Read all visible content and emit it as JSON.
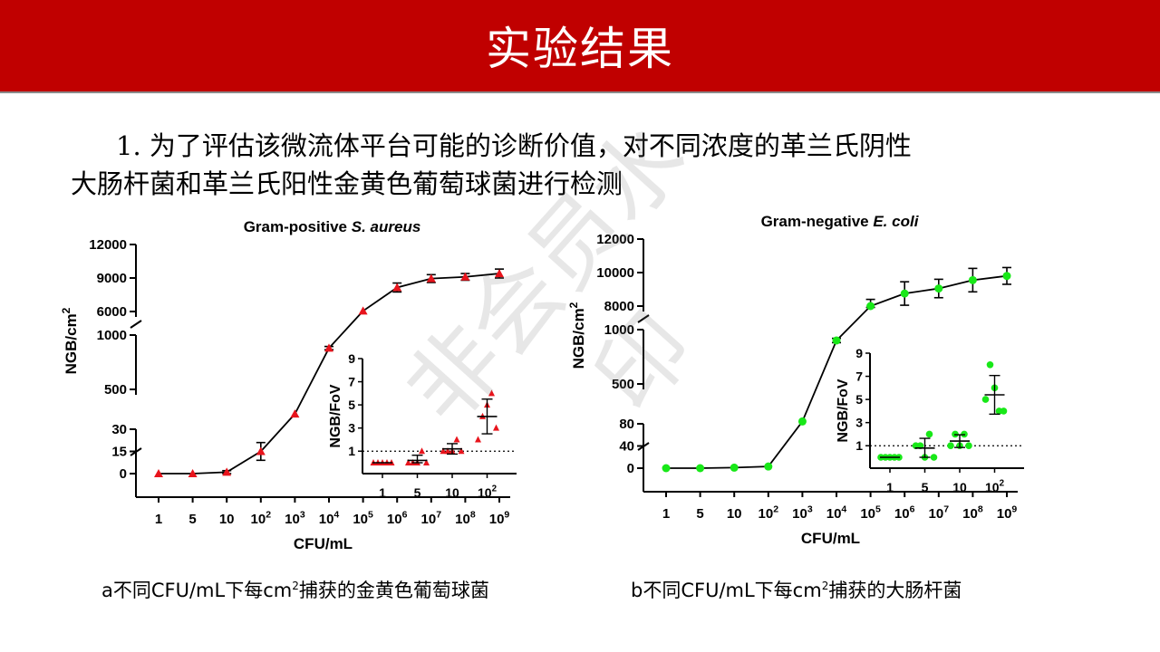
{
  "header": {
    "title": "实验结果"
  },
  "intro": {
    "line1": "1. 为了评估该微流体平台可能的诊断价值，对不同浓度的革兰氏阴性",
    "line2": "大肠杆菌和革兰氏阳性金黄色葡萄球菌进行检测"
  },
  "captions": {
    "a_pre": "a不同CFU/mL下每cm",
    "a_sup": "2",
    "a_post": "捕获的金黄色葡萄球菌",
    "b_pre": "b不同CFU/mL下每cm",
    "b_sup": "2",
    "b_post": "捕获的大肠杆菌"
  },
  "watermark": "非会员水印",
  "chart_data": [
    {
      "type": "line",
      "title": "Gram-positive S. aureus",
      "title_plain": "Gram-positive ",
      "title_italic": "S. aureus",
      "xlabel": "CFU/mL",
      "ylabel_base": "NGB/cm",
      "ylabel_sup": "2",
      "x_ticks": [
        {
          "base": "1",
          "exp": ""
        },
        {
          "base": "5",
          "exp": ""
        },
        {
          "base": "10",
          "exp": ""
        },
        {
          "base": "10",
          "exp": "2"
        },
        {
          "base": "10",
          "exp": "3"
        },
        {
          "base": "10",
          "exp": "4"
        },
        {
          "base": "10",
          "exp": "5"
        },
        {
          "base": "10",
          "exp": "6"
        },
        {
          "base": "10",
          "exp": "7"
        },
        {
          "base": "10",
          "exp": "8"
        },
        {
          "base": "10",
          "exp": "9"
        }
      ],
      "y_segments": [
        {
          "ticks": [
            0,
            15,
            30
          ]
        },
        {
          "ticks": [
            500,
            1000
          ]
        },
        {
          "ticks": [
            6000,
            9000,
            12000
          ]
        }
      ],
      "y_labels": [
        "0",
        "15",
        "30",
        "500",
        "1000",
        "6000",
        "9000",
        "12000"
      ],
      "marker": "triangle",
      "color": "#e8141c",
      "values": [
        0,
        0,
        1,
        15,
        210,
        880,
        6050,
        8150,
        8950,
        9100,
        9400
      ],
      "errors": [
        0,
        0,
        1,
        6,
        10,
        15,
        150,
        400,
        350,
        300,
        400
      ],
      "inset": {
        "ylabel": "NGB/FoV",
        "y_ticks": [
          1,
          3,
          5,
          7,
          9
        ],
        "y_labels": [
          "1",
          "3",
          "5",
          "7",
          "9"
        ],
        "x_ticks": [
          {
            "base": "1",
            "exp": ""
          },
          {
            "base": "5",
            "exp": ""
          },
          {
            "base": "10",
            "exp": ""
          },
          {
            "base": "10",
            "exp": "2"
          }
        ],
        "threshold": 1,
        "groups": [
          {
            "points": [
              0,
              0,
              0,
              0,
              0
            ],
            "mean": 0,
            "sd": 0
          },
          {
            "points": [
              0,
              0,
              0,
              1,
              0
            ],
            "mean": 0.2,
            "sd": 0.45
          },
          {
            "points": [
              1,
              1,
              1,
              2,
              1
            ],
            "mean": 1.2,
            "sd": 0.45
          },
          {
            "points": [
              2,
              4,
              5,
              6,
              3
            ],
            "mean": 4,
            "sd": 1.5
          }
        ]
      }
    },
    {
      "type": "line",
      "title": "Gram-negative E. coli",
      "title_plain": "Gram-negative ",
      "title_italic": "E. coli",
      "xlabel": "CFU/mL",
      "ylabel_base": "NGB/cm",
      "ylabel_sup": "2",
      "x_ticks": [
        {
          "base": "1",
          "exp": ""
        },
        {
          "base": "5",
          "exp": ""
        },
        {
          "base": "10",
          "exp": ""
        },
        {
          "base": "10",
          "exp": "2"
        },
        {
          "base": "10",
          "exp": "3"
        },
        {
          "base": "10",
          "exp": "4"
        },
        {
          "base": "10",
          "exp": "5"
        },
        {
          "base": "10",
          "exp": "6"
        },
        {
          "base": "10",
          "exp": "7"
        },
        {
          "base": "10",
          "exp": "8"
        },
        {
          "base": "10",
          "exp": "9"
        }
      ],
      "y_segments": [
        {
          "ticks": [
            0,
            40,
            80
          ]
        },
        {
          "ticks": [
            500,
            1000
          ]
        },
        {
          "ticks": [
            8000,
            10000,
            12000
          ]
        }
      ],
      "y_labels": [
        "0",
        "40",
        "80",
        "500",
        "1000",
        "8000",
        "10000",
        "12000"
      ],
      "marker": "circle",
      "color": "#18e818",
      "values": [
        0,
        0,
        1,
        3,
        105,
        900,
        8000,
        8750,
        9050,
        9550,
        9800
      ],
      "errors": [
        0,
        0,
        1,
        2,
        4,
        20,
        400,
        700,
        550,
        700,
        500
      ],
      "inset": {
        "ylabel": "NGB/FoV",
        "y_ticks": [
          1,
          3,
          5,
          7,
          9
        ],
        "y_labels": [
          "1",
          "3",
          "5",
          "7",
          "9"
        ],
        "x_ticks": [
          {
            "base": "1",
            "exp": ""
          },
          {
            "base": "5",
            "exp": ""
          },
          {
            "base": "10",
            "exp": ""
          },
          {
            "base": "10",
            "exp": "2"
          }
        ],
        "threshold": 1,
        "groups": [
          {
            "points": [
              0,
              0,
              0,
              0,
              0
            ],
            "mean": 0,
            "sd": 0
          },
          {
            "points": [
              1,
              1,
              0,
              2,
              0
            ],
            "mean": 0.8,
            "sd": 0.84
          },
          {
            "points": [
              1,
              2,
              1,
              2,
              1
            ],
            "mean": 1.4,
            "sd": 0.55
          },
          {
            "points": [
              5,
              8,
              6,
              4,
              4
            ],
            "mean": 5.4,
            "sd": 1.67
          }
        ]
      }
    }
  ]
}
